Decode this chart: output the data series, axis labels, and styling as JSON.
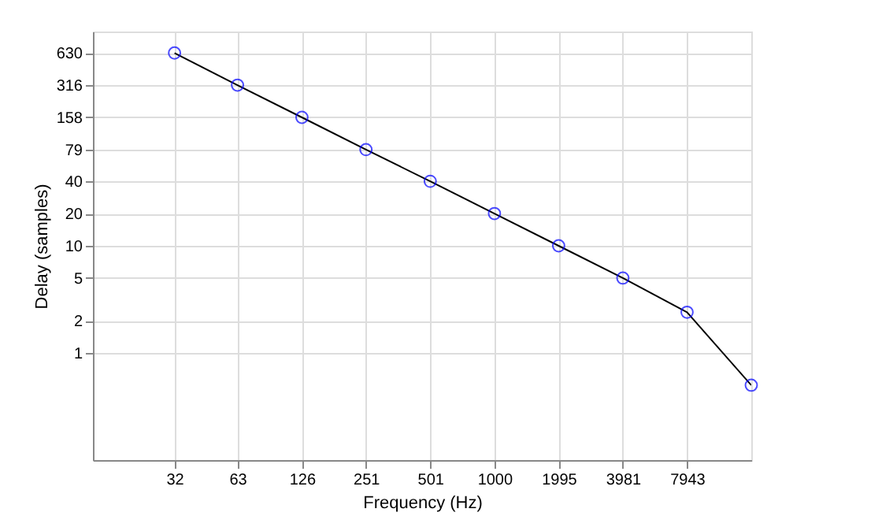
{
  "chart_data": {
    "type": "line",
    "xlabel": "Frequency (Hz)",
    "ylabel": "Delay (samples)",
    "x": [
      32,
      63,
      126,
      251,
      501,
      1000,
      1995,
      3981,
      7943,
      15849
    ],
    "series": [
      {
        "color": "#000000",
        "values": [
          630,
          316,
          158,
          79,
          40,
          20,
          10,
          5,
          2.4,
          0.5
        ]
      },
      {
        "type": "scatter",
        "color": "#0000ff",
        "marker": "circle",
        "values": [
          630,
          316,
          158,
          79,
          40,
          20,
          10,
          5,
          2.4,
          0.5
        ]
      }
    ],
    "log": "xy",
    "xlim": [
      13.3,
      15849
    ],
    "ylim": [
      0.1,
      1000
    ],
    "xticks": [
      32,
      63,
      126,
      251,
      501,
      1000,
      1995,
      3981,
      7943
    ],
    "yticks": [
      1,
      2,
      5,
      10,
      20,
      40,
      79,
      158,
      316,
      630
    ],
    "grid": true,
    "line_style": "solid"
  }
}
